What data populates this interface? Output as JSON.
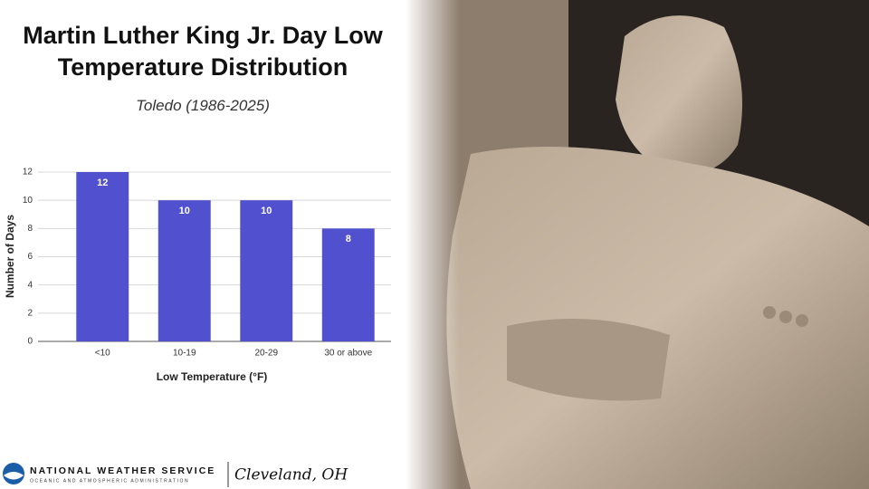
{
  "chart_data": {
    "type": "bar",
    "title": "Martin Luther King Jr. Day Low Temperature Distribution",
    "subtitle": "Toledo (1986-2025)",
    "x_label": "Low Temperature (°F)",
    "y_label": "Number of Days",
    "categories": [
      "<10",
      "10-19",
      "20-29",
      "30 or above"
    ],
    "values": [
      12,
      10,
      10,
      8
    ],
    "color": "#5151cf",
    "ylim": [
      0,
      12
    ],
    "yticks": [
      0,
      2,
      4,
      6,
      8,
      10,
      12
    ],
    "grid": true
  },
  "footer": {
    "agency": "NATIONAL WEATHER SERVICE",
    "agency_sub": "OCEANIC AND ATMOSPHERIC ADMINISTRATION",
    "office": "Cleveland, OH"
  }
}
